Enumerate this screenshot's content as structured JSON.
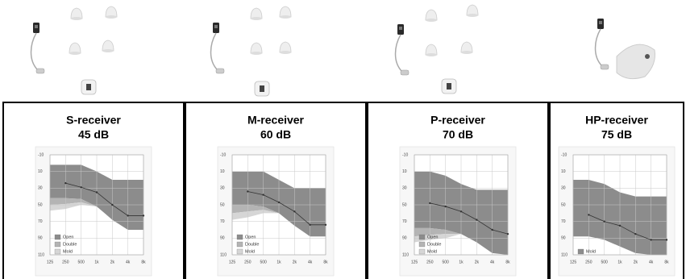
{
  "chart_data": [
    {
      "type": "area",
      "title": "S-receiver",
      "subtitle": "45 dB",
      "categories": [
        "125",
        "250",
        "500",
        "1k",
        "2k",
        "4k",
        "8k"
      ],
      "ylim": [
        -10,
        110
      ],
      "yticks": [
        -10,
        10,
        30,
        50,
        70,
        90,
        110
      ],
      "y_reversed": true,
      "grid": true,
      "series": [
        {
          "name": "Open",
          "color": "#8c8c8c",
          "top": [
            2,
            2,
            2,
            10,
            20,
            20,
            20
          ],
          "bottom": [
            42,
            42,
            43,
            52,
            68,
            80,
            80
          ]
        },
        {
          "name": "Double",
          "color": "#b4b4b4",
          "top": [
            42,
            42,
            43,
            52,
            68,
            80,
            80
          ],
          "bottom": [
            50,
            49,
            47,
            52,
            68,
            80,
            80
          ]
        },
        {
          "name": "Mold",
          "color": "#d6d6d6",
          "top": [
            50,
            49,
            47,
            52,
            68,
            80,
            80
          ],
          "bottom": [
            57,
            55,
            50,
            52,
            68,
            80,
            80
          ]
        }
      ],
      "line": {
        "color": "#333333",
        "values": [
          null,
          24,
          29,
          35,
          50,
          63,
          63
        ]
      }
    },
    {
      "type": "area",
      "title": "M-receiver",
      "subtitle": "60 dB",
      "categories": [
        "125",
        "250",
        "500",
        "1k",
        "2k",
        "4k",
        "8k"
      ],
      "ylim": [
        -10,
        110
      ],
      "yticks": [
        -10,
        10,
        30,
        50,
        70,
        90,
        110
      ],
      "y_reversed": true,
      "grid": true,
      "series": [
        {
          "name": "Open",
          "color": "#8c8c8c",
          "top": [
            10,
            10,
            10,
            20,
            30,
            30,
            30
          ],
          "bottom": [
            50,
            50,
            52,
            60,
            75,
            88,
            88
          ]
        },
        {
          "name": "Double",
          "color": "#b4b4b4",
          "top": [
            50,
            50,
            52,
            60,
            75,
            88,
            88
          ],
          "bottom": [
            60,
            58,
            56,
            60,
            75,
            88,
            88
          ]
        },
        {
          "name": "Mold",
          "color": "#d6d6d6",
          "top": [
            60,
            58,
            56,
            60,
            75,
            88,
            88
          ],
          "bottom": [
            68,
            65,
            60,
            60,
            75,
            88,
            88
          ]
        }
      ],
      "line": {
        "color": "#333333",
        "values": [
          null,
          34,
          38,
          47,
          58,
          74,
          74
        ]
      }
    },
    {
      "type": "area",
      "title": "P-receiver",
      "subtitle": "70 dB",
      "categories": [
        "125",
        "250",
        "500",
        "1k",
        "2k",
        "4k",
        "8k"
      ],
      "ylim": [
        -10,
        110
      ],
      "yticks": [
        -10,
        10,
        30,
        50,
        70,
        90,
        110
      ],
      "y_reversed": true,
      "grid": true,
      "series": [
        {
          "name": "Open",
          "color": "#8c8c8c",
          "top": [
            10,
            10,
            15,
            25,
            32,
            32,
            32
          ],
          "bottom": [
            78,
            78,
            80,
            85,
            95,
            108,
            110
          ]
        },
        {
          "name": "Double",
          "color": "#b4b4b4",
          "top": [
            78,
            78,
            80,
            85,
            95,
            108,
            110
          ],
          "bottom": [
            88,
            86,
            85,
            85,
            95,
            108,
            110
          ]
        },
        {
          "name": "Mold",
          "color": "#d6d6d6",
          "top": [
            88,
            86,
            85,
            85,
            95,
            108,
            110
          ],
          "bottom": [
            95,
            92,
            90,
            85,
            95,
            108,
            110
          ]
        }
      ],
      "line": {
        "color": "#333333",
        "values": [
          null,
          48,
          52,
          58,
          68,
          80,
          85
        ]
      }
    },
    {
      "type": "area",
      "title": "HP-receiver",
      "subtitle": "75 dB",
      "categories": [
        "125",
        "250",
        "500",
        "1k",
        "2k",
        "4k",
        "8k"
      ],
      "ylim": [
        -10,
        110
      ],
      "yticks": [
        -10,
        10,
        30,
        50,
        70,
        90,
        110
      ],
      "y_reversed": true,
      "grid": true,
      "series": [
        {
          "name": "Mold",
          "color": "#8c8c8c",
          "top": [
            20,
            20,
            25,
            35,
            40,
            40,
            40
          ],
          "bottom": [
            88,
            88,
            92,
            100,
            108,
            110,
            110
          ]
        }
      ],
      "line": {
        "color": "#333333",
        "values": [
          null,
          62,
          70,
          75,
          85,
          92,
          92
        ]
      }
    }
  ]
}
